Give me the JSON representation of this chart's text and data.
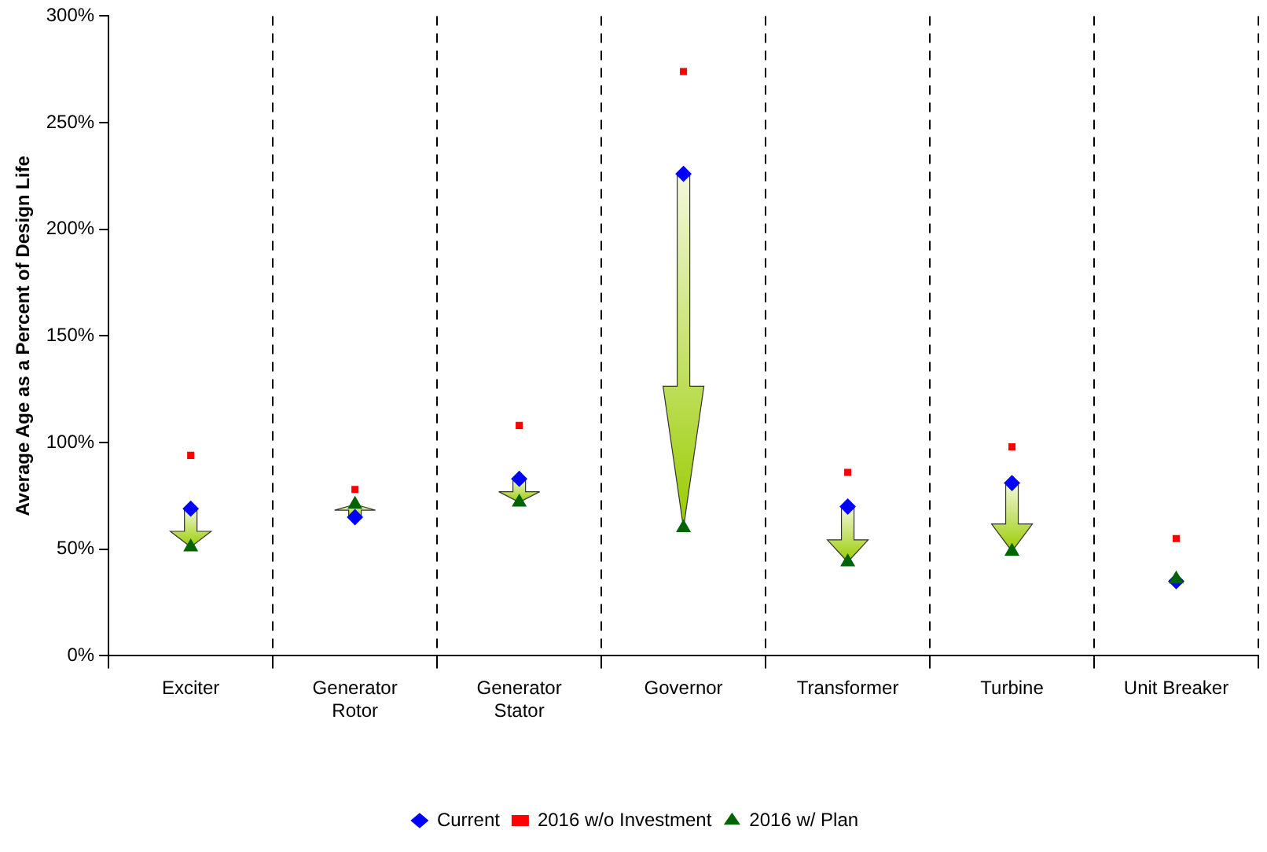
{
  "chart_data": {
    "type": "scatter",
    "ylabel": "Average Age as a Percent of Design Life",
    "categories": [
      "Exciter",
      "Generator Rotor",
      "Generator Stator",
      "Governor",
      "Transformer",
      "Turbine",
      "Unit Breaker"
    ],
    "series": [
      {
        "name": "Current",
        "color": "#0000ff",
        "marker": "diamond",
        "values": [
          69,
          65,
          83,
          226,
          70,
          81,
          35
        ]
      },
      {
        "name": "2016 w/o Investment",
        "color": "#ff0000",
        "marker": "square",
        "values": [
          94,
          78,
          108,
          274,
          86,
          98,
          55
        ]
      },
      {
        "name": "2016 w/ Plan",
        "color": "#006400",
        "marker": "triangle",
        "values": [
          51,
          71,
          72,
          60,
          44,
          49,
          36
        ]
      }
    ],
    "ylim": [
      0,
      300
    ],
    "yticks": [
      {
        "value": 0,
        "label": "0%"
      },
      {
        "value": 50,
        "label": "50%"
      },
      {
        "value": 100,
        "label": "100%"
      },
      {
        "value": 150,
        "label": "150%"
      },
      {
        "value": 200,
        "label": "200%"
      },
      {
        "value": 250,
        "label": "250%"
      },
      {
        "value": 300,
        "label": "300%"
      }
    ],
    "grid": "x",
    "legend": "bottom"
  }
}
